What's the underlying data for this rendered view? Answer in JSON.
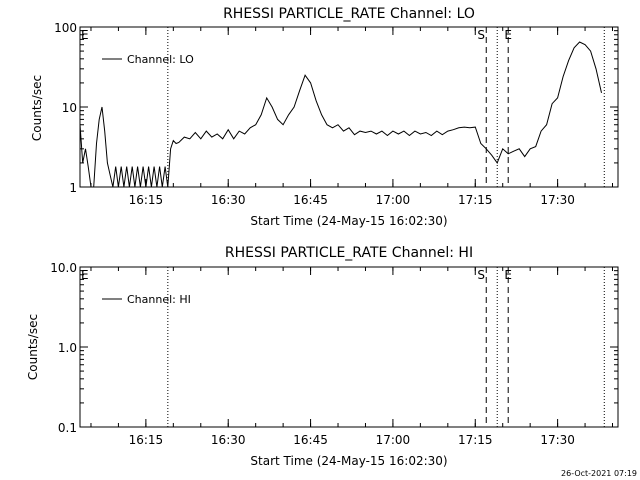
{
  "footer": {
    "timestamp": "26-Oct-2021 07:19"
  },
  "chart_data": [
    {
      "type": "line",
      "title": "RHESSI PARTICLE_RATE Channel: LO",
      "xlabel": "Start Time (24-May-15 16:02:30)",
      "ylabel": "Counts/sec",
      "yscale": "log",
      "xlim": [
        "16:03:00",
        "17:41:00"
      ],
      "ylim": [
        1,
        100
      ],
      "x_ticks": [
        "16:15",
        "16:30",
        "16:45",
        "17:00",
        "17:15",
        "17:30"
      ],
      "y_ticks": [
        "1",
        "10",
        "100"
      ],
      "legend": {
        "entries": [
          "Channel: LO"
        ],
        "position": "top-left"
      },
      "markers": [
        {
          "label": "E",
          "time": "16:03:00",
          "style": "none"
        },
        {
          "label": "",
          "time": "16:19:00",
          "style": "dotted"
        },
        {
          "label": "S",
          "time": "17:17:00",
          "style": "dashed"
        },
        {
          "label": "",
          "time": "17:19:00",
          "style": "dotted"
        },
        {
          "label": "E",
          "time": "17:21:00",
          "style": "dashed"
        },
        {
          "label": "",
          "time": "17:38:30",
          "style": "dotted"
        }
      ],
      "series": [
        {
          "name": "Channel: LO",
          "x": [
            "16:03:00",
            "16:03:30",
            "16:04:00",
            "16:04:30",
            "16:05:00",
            "16:05:30",
            "16:06:00",
            "16:06:30",
            "16:07:00",
            "16:07:30",
            "16:08:00",
            "16:08:30",
            "16:09:00",
            "16:09:30",
            "16:10:00",
            "16:10:30",
            "16:11:00",
            "16:11:30",
            "16:12:00",
            "16:12:30",
            "16:13:00",
            "16:13:30",
            "16:14:00",
            "16:14:30",
            "16:15:00",
            "16:15:30",
            "16:16:00",
            "16:16:30",
            "16:17:00",
            "16:17:30",
            "16:18:00",
            "16:18:30",
            "16:19:00",
            "16:19:30",
            "16:20:00",
            "16:20:30",
            "16:21:00",
            "16:22:00",
            "16:23:00",
            "16:24:00",
            "16:25:00",
            "16:26:00",
            "16:27:00",
            "16:28:00",
            "16:29:00",
            "16:30:00",
            "16:31:00",
            "16:32:00",
            "16:33:00",
            "16:34:00",
            "16:35:00",
            "16:36:00",
            "16:37:00",
            "16:38:00",
            "16:39:00",
            "16:40:00",
            "16:41:00",
            "16:42:00",
            "16:43:00",
            "16:44:00",
            "16:45:00",
            "16:46:00",
            "16:47:00",
            "16:48:00",
            "16:49:00",
            "16:50:00",
            "16:51:00",
            "16:52:00",
            "16:53:00",
            "16:54:00",
            "16:55:00",
            "16:56:00",
            "16:57:00",
            "16:58:00",
            "16:59:00",
            "17:00:00",
            "17:01:00",
            "17:02:00",
            "17:03:00",
            "17:04:00",
            "17:05:00",
            "17:06:00",
            "17:07:00",
            "17:08:00",
            "17:09:00",
            "17:10:00",
            "17:11:00",
            "17:12:00",
            "17:13:00",
            "17:14:00",
            "17:15:00",
            "17:16:00",
            "17:17:00",
            "17:18:00",
            "17:19:00",
            "17:20:00",
            "17:21:00",
            "17:22:00",
            "17:23:00",
            "17:24:00",
            "17:25:00",
            "17:26:00",
            "17:27:00",
            "17:28:00",
            "17:29:00",
            "17:30:00",
            "17:31:00",
            "17:32:00",
            "17:33:00",
            "17:34:00",
            "17:35:00",
            "17:36:00",
            "17:37:00",
            "17:38:00"
          ],
          "values": [
            6,
            2,
            3,
            1.8,
            1,
            1,
            3.5,
            7,
            10,
            5,
            2,
            1.4,
            1,
            1.8,
            1,
            1.8,
            1,
            1.8,
            1,
            1.8,
            1,
            1.8,
            1,
            1.8,
            1,
            1.8,
            1,
            1.8,
            1,
            1.8,
            1,
            1.8,
            1,
            3,
            3.8,
            3.5,
            3.6,
            4.2,
            4,
            4.8,
            4,
            5,
            4.2,
            4.6,
            4,
            5.2,
            4,
            5,
            4.6,
            5.5,
            6,
            8,
            13,
            10,
            7,
            6,
            8,
            10,
            16,
            25,
            20,
            12,
            8,
            6,
            5.5,
            6,
            5,
            5.5,
            4.5,
            5,
            4.8,
            5,
            4.6,
            5,
            4.4,
            5,
            4.6,
            5,
            4.4,
            5,
            4.6,
            4.8,
            4.4,
            5,
            4.5,
            5,
            5.2,
            5.5,
            5.6,
            5.5,
            5.6,
            3.5,
            3,
            2.5,
            2,
            3,
            2.6,
            2.8,
            3,
            2.4,
            3,
            3.2,
            5,
            6,
            11,
            13,
            24,
            38,
            55,
            65,
            60,
            50,
            30,
            15
          ]
        }
      ]
    },
    {
      "type": "line",
      "title": "RHESSI PARTICLE_RATE Channel: HI",
      "xlabel": "Start Time (24-May-15 16:02:30)",
      "ylabel": "Counts/sec",
      "yscale": "log",
      "xlim": [
        "16:03:00",
        "17:41:00"
      ],
      "ylim": [
        0.1,
        10
      ],
      "x_ticks": [
        "16:15",
        "16:30",
        "16:45",
        "17:00",
        "17:15",
        "17:30"
      ],
      "y_ticks": [
        "0.1",
        "1.0",
        "10.0"
      ],
      "legend": {
        "entries": [
          "Channel: HI"
        ],
        "position": "top-left"
      },
      "markers": [
        {
          "label": "E",
          "time": "16:03:00",
          "style": "none"
        },
        {
          "label": "",
          "time": "16:19:00",
          "style": "dotted"
        },
        {
          "label": "S",
          "time": "17:17:00",
          "style": "dashed"
        },
        {
          "label": "",
          "time": "17:19:00",
          "style": "dotted"
        },
        {
          "label": "E",
          "time": "17:21:00",
          "style": "dashed"
        },
        {
          "label": "",
          "time": "17:38:30",
          "style": "dotted"
        }
      ],
      "series": [
        {
          "name": "Channel: HI",
          "x": [],
          "values": []
        }
      ]
    }
  ]
}
